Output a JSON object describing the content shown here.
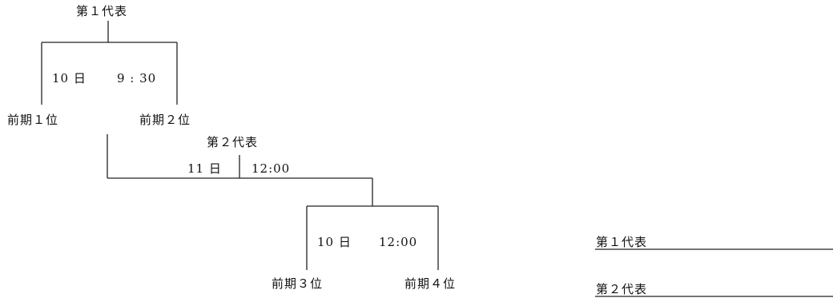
{
  "bracket1": {
    "winner": "第１代表",
    "day": "10 日",
    "time": "9 : 30",
    "left_team": "前期１位",
    "right_team": "前期２位"
  },
  "bracket2": {
    "winner": "第２代表",
    "day": "11 日",
    "time": "12:00"
  },
  "bracket3": {
    "day": "10 日",
    "time": "12:00",
    "left_team": "前期３位",
    "right_team": "前期４位"
  },
  "results": {
    "rep1_label": "第１代表",
    "rep2_label": "第２代表"
  }
}
